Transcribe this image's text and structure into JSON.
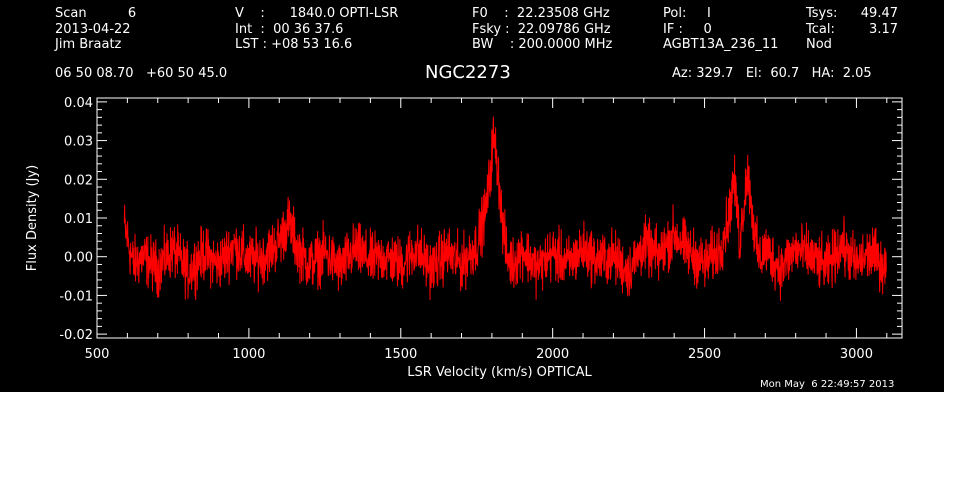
{
  "header": {
    "col1": {
      "l1": "Scan          6",
      "l2": "2013-04-22",
      "l3": "Jim Braatz"
    },
    "col2": {
      "l1": "V    :      1840.0 OPTI-LSR",
      "l2": "Int  :  00 36 37.6",
      "l3": "LST : +08 53 16.6"
    },
    "col3": {
      "l1": "F0    :  22.23508 GHz",
      "l2": "Fsky :  22.09786 GHz",
      "l3": "BW    : 200.0000 MHz"
    },
    "col4": {
      "l1": "Pol:     I",
      "l2": "IF :     0",
      "l3": "AGBT13A_236_11"
    },
    "col5": {
      "l1": "Tsys:",
      "v1": "49.47",
      "l2": "Tcal:",
      "v2": "3.17",
      "l3": "Nod"
    },
    "coords": "06 50 08.70   +60 50 45.0",
    "source": "NGC2273",
    "azel": "Az: 329.7   El:  60.7   HA:  2.05"
  },
  "timestamp": "Mon May  6 22:49:57 2013",
  "colors": {
    "background": "#000000",
    "foreground": "#ffffff",
    "trace": "#ff0000"
  },
  "chart_data": {
    "type": "line",
    "title": "NGC2273",
    "xlabel": "LSR Velocity (km/s) OPTICAL",
    "ylabel": "Flux Density (Jy)",
    "xlim": [
      500,
      3150
    ],
    "ylim": [
      -0.021,
      0.041
    ],
    "xticks": [
      500,
      1000,
      1500,
      2000,
      2500,
      3000
    ],
    "yticks": [
      -0.02,
      -0.01,
      0.0,
      0.01,
      0.02,
      0.03,
      0.04
    ],
    "ytick_labels": [
      "-0.02",
      "-0.01",
      "0.00",
      "0.01",
      "0.02",
      "0.03",
      "0.04"
    ],
    "grid": false,
    "series": [
      {
        "x": [
          590,
          620,
          650,
          700,
          750,
          800,
          850,
          900,
          950,
          1000,
          1050,
          1100,
          1130,
          1145,
          1160,
          1200,
          1250,
          1300,
          1350,
          1400,
          1450,
          1500,
          1550,
          1600,
          1650,
          1700,
          1750,
          1780,
          1795,
          1805,
          1815,
          1825,
          1835,
          1850,
          1870,
          1900,
          1950,
          2000,
          2050,
          2100,
          2150,
          2200,
          2250,
          2300,
          2350,
          2400,
          2450,
          2500,
          2550,
          2580,
          2595,
          2605,
          2615,
          2625,
          2640,
          2650,
          2665,
          2680,
          2700,
          2750,
          2800,
          2850,
          2900,
          2950,
          3000,
          3050,
          3100
        ],
        "y": [
          0.008,
          -0.002,
          0.0,
          -0.003,
          0.002,
          -0.004,
          0.001,
          -0.002,
          0.003,
          -0.001,
          0.0,
          0.004,
          0.009,
          0.006,
          0.002,
          -0.002,
          0.001,
          -0.003,
          0.002,
          -0.001,
          0.0,
          -0.002,
          0.002,
          -0.003,
          0.001,
          -0.002,
          0.003,
          0.012,
          0.022,
          0.031,
          0.026,
          0.018,
          0.008,
          0.0,
          -0.002,
          0.002,
          -0.003,
          0.001,
          -0.002,
          0.002,
          -0.001,
          0.0,
          -0.004,
          0.003,
          0.0,
          0.006,
          0.001,
          -0.002,
          0.002,
          0.01,
          0.02,
          0.014,
          0.004,
          0.01,
          0.022,
          0.017,
          0.005,
          -0.001,
          0.002,
          -0.003,
          0.002,
          0.0,
          -0.003,
          0.003,
          -0.002,
          0.001,
          -0.003
        ]
      }
    ]
  }
}
